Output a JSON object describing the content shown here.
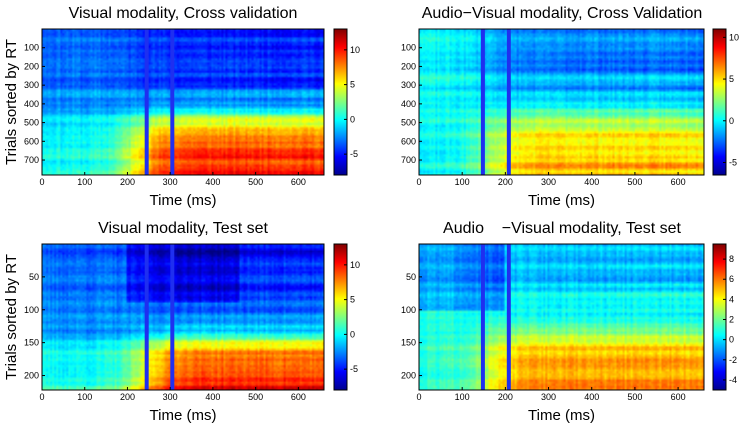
{
  "chart_data": [
    {
      "type": "heatmap",
      "title": "Visual modality, Cross validation",
      "xlabel": "Time (ms)",
      "ylabel": "Trials sorted by RT",
      "xlim": [
        0,
        660
      ],
      "ylim": [
        0,
        780
      ],
      "xticks": [
        "0",
        "100",
        "200",
        "300",
        "400",
        "500",
        "600"
      ],
      "yticks": [
        "100",
        "200",
        "300",
        "400",
        "500",
        "600",
        "700"
      ],
      "colorbar": {
        "min": -8,
        "max": 13,
        "ticks": [
          "10",
          "5",
          "0",
          "-5"
        ]
      },
      "vlines_ms": [
        245,
        305
      ]
    },
    {
      "type": "heatmap",
      "title": "Audio−Visual modality, Cross Validation",
      "xlabel": "Time (ms)",
      "ylabel": "",
      "xlim": [
        0,
        660
      ],
      "ylim": [
        0,
        780
      ],
      "xticks": [
        "0",
        "100",
        "200",
        "300",
        "400",
        "500",
        "600"
      ],
      "yticks": [
        "100",
        "200",
        "300",
        "400",
        "500",
        "600",
        "700"
      ],
      "colorbar": {
        "min": -6.5,
        "max": 11,
        "ticks": [
          "10",
          "5",
          "0",
          "-5"
        ]
      },
      "vlines_ms": [
        148,
        208
      ]
    },
    {
      "type": "heatmap",
      "title": "Visual modality, Test set",
      "xlabel": "Time (ms)",
      "ylabel": "Trials sorted by RT",
      "xlim": [
        0,
        660
      ],
      "ylim": [
        0,
        222
      ],
      "xticks": [
        "0",
        "100",
        "200",
        "300",
        "400",
        "500",
        "600"
      ],
      "yticks": [
        "50",
        "100",
        "150",
        "200"
      ],
      "colorbar": {
        "min": -8,
        "max": 13,
        "ticks": [
          "10",
          "5",
          "0",
          "-5"
        ]
      },
      "vlines_ms": [
        245,
        305
      ]
    },
    {
      "type": "heatmap",
      "title": "Audio    −Visual modality, Test set",
      "xlabel": "Time (ms)",
      "ylabel": "",
      "xlim": [
        0,
        660
      ],
      "ylim": [
        0,
        222
      ],
      "xticks": [
        "0",
        "100",
        "200",
        "300",
        "400",
        "500",
        "600"
      ],
      "yticks": [
        "50",
        "100",
        "150",
        "200"
      ],
      "colorbar": {
        "min": -5,
        "max": 9.5,
        "ticks": [
          "8",
          "6",
          "4",
          "2",
          "0",
          "-2",
          "-4"
        ]
      },
      "vlines_ms": [
        148,
        208
      ]
    }
  ]
}
